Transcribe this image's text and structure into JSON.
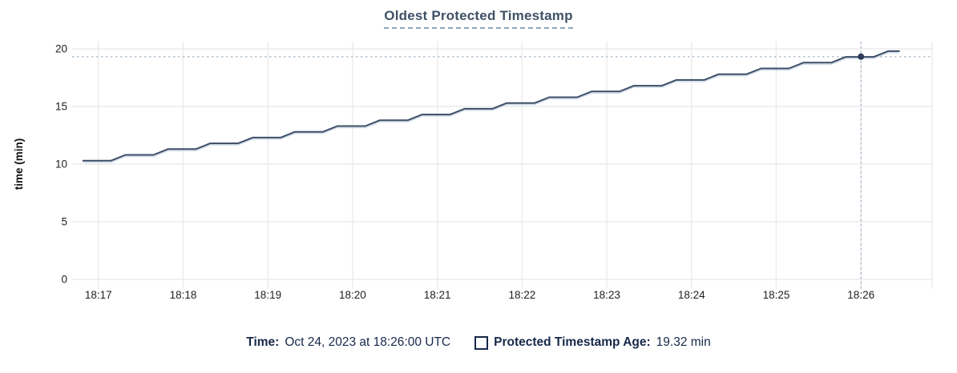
{
  "title": "Oldest Protected Timestamp",
  "y_axis_title": "time (min)",
  "tooltip": {
    "time_label": "Time:",
    "time_value": "Oct 24, 2023 at 18:26:00 UTC",
    "series_label": "Protected Timestamp Age:",
    "series_value": "19.32 min",
    "series_checkbox_icon": "checkbox-outline"
  },
  "colors": {
    "line": "#3c4c66",
    "line_underlay": "#c9d6e2",
    "dot": "#2c3c58",
    "crosshair": "#9eb2c6",
    "grid": "#ebebeb",
    "tick": "#d8d8d8",
    "axis_text": "#1f1f1f",
    "title_text": "#3f5166",
    "title_underline": "#8fa5b8",
    "legend_text": "#16284a"
  },
  "chart_data": {
    "type": "line",
    "title": "Oldest Protected Timestamp",
    "xlabel": "",
    "ylabel": "time (min)",
    "legend_position": "bottom",
    "grid": true,
    "x_tick_labels": [
      "18:17",
      "18:18",
      "18:19",
      "18:20",
      "18:21",
      "18:22",
      "18:23",
      "18:24",
      "18:25",
      "18:26"
    ],
    "x_tick_minutes": [
      17,
      18,
      19,
      20,
      21,
      22,
      23,
      24,
      25,
      26
    ],
    "y_ticks": [
      0,
      5,
      10,
      15,
      20
    ],
    "ylim": [
      0,
      20
    ],
    "xlim_minutes": [
      16.69,
      26.84
    ],
    "series": [
      {
        "name": "Protected Timestamp Age",
        "points_time_min_vs_age_min": [
          [
            16.82,
            10.3
          ],
          [
            17.15,
            10.3
          ],
          [
            17.32,
            10.8
          ],
          [
            17.65,
            10.8
          ],
          [
            17.82,
            11.3
          ],
          [
            18.15,
            11.3
          ],
          [
            18.32,
            11.8
          ],
          [
            18.65,
            11.8
          ],
          [
            18.82,
            12.3
          ],
          [
            19.15,
            12.3
          ],
          [
            19.32,
            12.8
          ],
          [
            19.65,
            12.8
          ],
          [
            19.82,
            13.3
          ],
          [
            20.15,
            13.3
          ],
          [
            20.32,
            13.8
          ],
          [
            20.65,
            13.8
          ],
          [
            20.82,
            14.3
          ],
          [
            21.15,
            14.3
          ],
          [
            21.32,
            14.8
          ],
          [
            21.65,
            14.8
          ],
          [
            21.82,
            15.3
          ],
          [
            22.15,
            15.3
          ],
          [
            22.32,
            15.8
          ],
          [
            22.65,
            15.8
          ],
          [
            22.82,
            16.3
          ],
          [
            23.15,
            16.3
          ],
          [
            23.32,
            16.8
          ],
          [
            23.65,
            16.8
          ],
          [
            23.82,
            17.3
          ],
          [
            24.15,
            17.3
          ],
          [
            24.32,
            17.8
          ],
          [
            24.65,
            17.8
          ],
          [
            24.82,
            18.3
          ],
          [
            25.15,
            18.3
          ],
          [
            25.32,
            18.8
          ],
          [
            25.65,
            18.8
          ],
          [
            25.82,
            19.3
          ],
          [
            26.15,
            19.3
          ],
          [
            26.32,
            19.8
          ],
          [
            26.45,
            19.8
          ]
        ]
      }
    ],
    "hover_point": {
      "time_minutes": 26.0,
      "time_label": "18:26:00",
      "value": 19.32
    }
  }
}
